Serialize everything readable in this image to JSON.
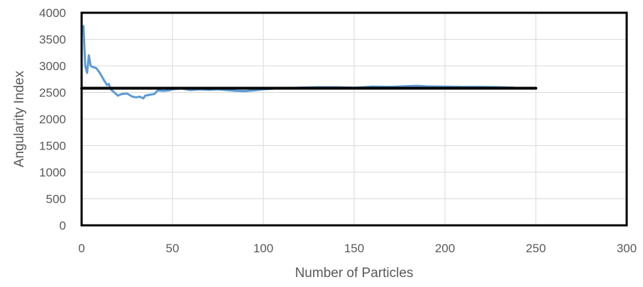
{
  "chart_data": {
    "type": "line",
    "title": "",
    "xlabel": "Number of Particles",
    "ylabel": "Angularity Index",
    "xlim": [
      0,
      300
    ],
    "ylim": [
      0,
      4000
    ],
    "xticks": [
      0,
      50,
      100,
      150,
      200,
      250,
      300
    ],
    "yticks": [
      0,
      500,
      1000,
      1500,
      2000,
      2500,
      3000,
      3500,
      4000
    ],
    "grid": true,
    "legend": "none",
    "series": [
      {
        "color": "#5B9BD5",
        "x": [
          1,
          2,
          3,
          4,
          5,
          6,
          8,
          10,
          12,
          14,
          15,
          16,
          18,
          20,
          22,
          25,
          28,
          30,
          32,
          34,
          35,
          38,
          40,
          42,
          45,
          48,
          50,
          55,
          60,
          65,
          70,
          75,
          80,
          85,
          90,
          95,
          100,
          110,
          120,
          130,
          140,
          150,
          160,
          170,
          180,
          185,
          190,
          200,
          210,
          220,
          230,
          238
        ],
        "values": [
          3750,
          3000,
          2870,
          3200,
          3000,
          2980,
          2960,
          2870,
          2750,
          2640,
          2660,
          2560,
          2500,
          2440,
          2470,
          2480,
          2420,
          2410,
          2420,
          2390,
          2440,
          2460,
          2470,
          2540,
          2530,
          2540,
          2560,
          2575,
          2545,
          2560,
          2550,
          2560,
          2545,
          2530,
          2525,
          2540,
          2560,
          2580,
          2590,
          2600,
          2600,
          2590,
          2610,
          2605,
          2620,
          2625,
          2615,
          2610,
          2605,
          2605,
          2600,
          2590
        ]
      },
      {
        "color": "#000000",
        "x": [
          0,
          250
        ],
        "values": [
          2580,
          2580
        ]
      }
    ]
  }
}
